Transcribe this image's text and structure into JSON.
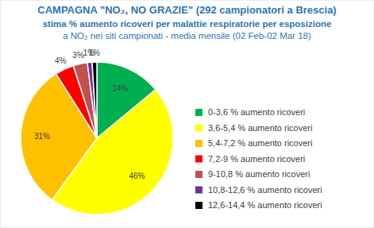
{
  "chart_data": {
    "type": "pie",
    "title": "CAMPAGNA \"NO₂, NO GRAZIE\" (292 campionatori a Brescia)",
    "subtitle": [
      "stima % aumento ricoveri per malattie respiratorie per esposizione",
      "a NO₂ nei siti campionati - media mensile (02 Feb-02 Mar 18)"
    ],
    "categories": [
      "0-3,6 % aumento ricoveri",
      "3,6-5,4 % aumento ricoveri",
      "5,4-7,2 % aumento ricoveri",
      "7,2-9 % aumento ricoveri",
      "9-10,8 % aumento ricoveri",
      "10,8-12,6 % aumento ricoveri",
      "12,6-14,4 % aumento ricoveri"
    ],
    "values": [
      14,
      46,
      31,
      4,
      3,
      1,
      1
    ],
    "value_labels": [
      "14%",
      "46%",
      "31%",
      "4%",
      "3%",
      "1%",
      "1%"
    ],
    "colors": [
      "#00b050",
      "#ffff00",
      "#ffc000",
      "#ff0000",
      "#c0504d",
      "#7030a0",
      "#000000"
    ],
    "data_labels": true,
    "legend": "right"
  }
}
